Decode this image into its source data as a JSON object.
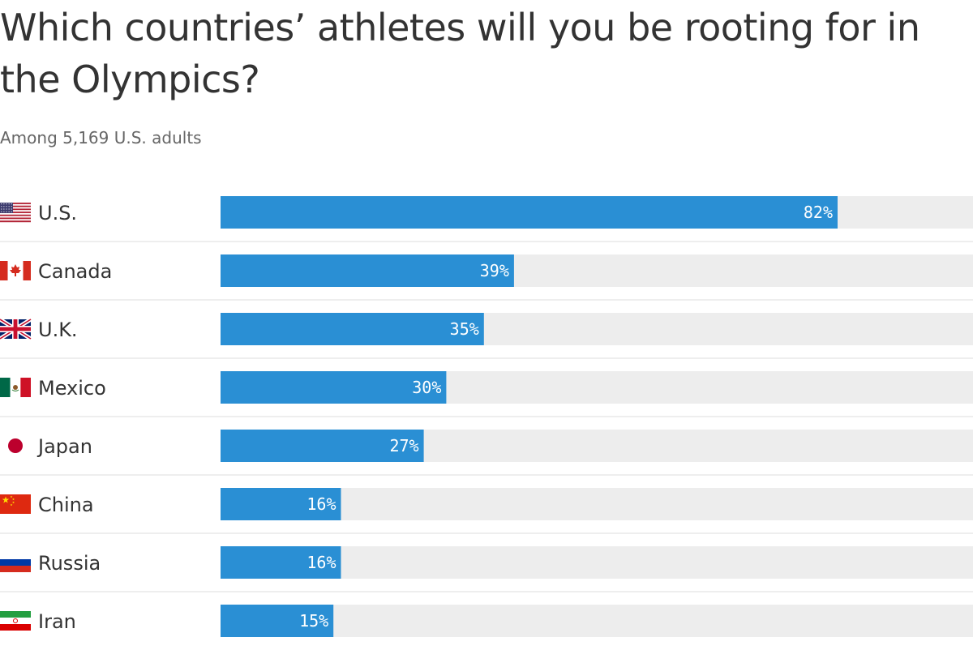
{
  "chart_data": {
    "type": "bar",
    "orientation": "horizontal",
    "title": "Which countries’ athletes will you be rooting for in the Olympics?",
    "subtitle": "Among 5,169 U.S. adults",
    "categories": [
      "U.S.",
      "Canada",
      "U.K.",
      "Mexico",
      "Japan",
      "China",
      "Russia",
      "Iran"
    ],
    "values": [
      82,
      39,
      35,
      30,
      27,
      16,
      16,
      15
    ],
    "value_labels": [
      "82%",
      "39%",
      "35%",
      "30%",
      "27%",
      "16%",
      "16%",
      "15%"
    ],
    "flags": [
      "us-flag-icon",
      "canada-flag-icon",
      "uk-flag-icon",
      "mexico-flag-icon",
      "japan-flag-icon",
      "china-flag-icon",
      "russia-flag-icon",
      "iran-flag-icon"
    ],
    "xlim": [
      0,
      100
    ],
    "unit": "%",
    "grid": false,
    "legend": "none",
    "colors": {
      "bar": "#2A8FD4",
      "track": "#EDEDED",
      "divider": "#DDDDDD",
      "value_text": "#FFFFFF",
      "label_text": "#333333"
    }
  }
}
